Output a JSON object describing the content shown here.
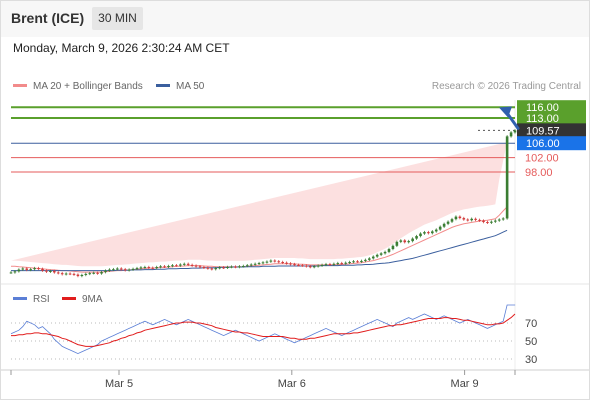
{
  "header": {
    "title": "Brent (ICE)",
    "timeframe": "30 MIN",
    "datetime": "Monday, March 9, 2026 2:30:24 AM CET"
  },
  "legend": {
    "ma20_label": "MA 20 + Bollinger Bands",
    "ma50_label": "MA 50",
    "ma20_color": "#f28b8b",
    "ma50_color": "#3b5f9e",
    "credit": "Research © 2026 Trading Central"
  },
  "rsi_legend": {
    "rsi_label": "RSI",
    "ma9_label": "9MA",
    "rsi_color": "#5b7fd6",
    "ma9_color": "#e11d1d"
  },
  "colors": {
    "resistance": "#5aa02c",
    "pivot": "#3b5f9e",
    "support": "#e55b5b",
    "candle_up": "#3a7d32",
    "candle_down": "#d23b3b",
    "price_badge": "#333333",
    "pivot_badge": "#1a73e8",
    "arrow": "#2f5fae"
  },
  "chart_data": [
    {
      "type": "candlestick",
      "title": "",
      "levels": [
        {
          "value": 116.0,
          "label": "116.00",
          "kind": "resistance"
        },
        {
          "value": 113.0,
          "label": "113.00",
          "kind": "resistance"
        },
        {
          "value": 109.57,
          "label": "109.57",
          "kind": "last_price"
        },
        {
          "value": 106.0,
          "label": "106.00",
          "kind": "pivot"
        },
        {
          "value": 102.0,
          "label": "102.00",
          "kind": "support"
        },
        {
          "value": 98.0,
          "label": "98.00",
          "kind": "support"
        }
      ],
      "ylim": [
        68,
        118
      ],
      "x_ticks": [
        {
          "label": "Mar 5",
          "x": 30
        },
        {
          "label": "Mar 6",
          "x": 78
        },
        {
          "label": "Mar 9",
          "x": 126
        }
      ],
      "xlim": [
        0,
        140
      ],
      "close": [
        70.1,
        70.4,
        70.9,
        71.2,
        70.8,
        71.0,
        71.3,
        71.1,
        70.6,
        70.3,
        70.5,
        70.1,
        69.9,
        69.6,
        69.8,
        69.7,
        69.5,
        69.1,
        69.4,
        69.7,
        69.9,
        70.0,
        69.8,
        70.2,
        70.6,
        70.9,
        71.0,
        71.2,
        71.0,
        70.7,
        70.9,
        71.1,
        71.3,
        71.5,
        71.6,
        71.4,
        71.3,
        71.6,
        71.8,
        71.7,
        71.9,
        72.1,
        72.0,
        72.3,
        72.5,
        72.2,
        72.0,
        71.8,
        71.6,
        71.4,
        71.2,
        71.0,
        71.3,
        71.5,
        71.4,
        71.6,
        71.7,
        71.6,
        71.8,
        71.9,
        72.1,
        72.3,
        72.5,
        72.7,
        72.9,
        73.1,
        73.4,
        73.2,
        73.0,
        72.8,
        72.6,
        72.4,
        72.2,
        72.1,
        72.0,
        71.8,
        71.6,
        71.8,
        72.0,
        72.2,
        72.4,
        72.3,
        72.5,
        72.7,
        72.6,
        72.8,
        73.0,
        73.2,
        73.1,
        73.3,
        73.6,
        74.0,
        74.5,
        75.0,
        75.4,
        75.8,
        76.6,
        77.5,
        78.6,
        79.0,
        78.5,
        78.8,
        79.5,
        80.2,
        80.9,
        81.3,
        81.0,
        81.5,
        82.0,
        82.8,
        83.6,
        84.2,
        84.9,
        85.6,
        85.2,
        84.8,
        84.6,
        85.0,
        84.7,
        84.5,
        84.1,
        83.9,
        84.2,
        84.5,
        84.8,
        85.1,
        107.9,
        109.0,
        109.57
      ],
      "ma20": [
        71.8,
        71.8,
        71.7,
        71.6,
        71.5,
        71.4,
        71.3,
        71.2,
        71.1,
        71.0,
        70.9,
        70.8,
        70.7,
        70.6,
        70.6,
        70.5,
        70.4,
        70.3,
        70.2,
        70.2,
        70.2,
        70.2,
        70.2,
        70.2,
        70.3,
        70.4,
        70.5,
        70.6,
        70.6,
        70.7,
        70.8,
        70.9,
        71.0,
        71.1,
        71.2,
        71.3,
        71.3,
        71.4,
        71.5,
        71.5,
        71.6,
        71.7,
        71.8,
        71.8,
        71.9,
        72.0,
        72.0,
        72.0,
        72.0,
        71.9,
        71.8,
        71.8,
        71.7,
        71.7,
        71.7,
        71.7,
        71.7,
        71.7,
        71.7,
        71.7,
        71.8,
        71.9,
        72.0,
        72.1,
        72.2,
        72.3,
        72.4,
        72.5,
        72.5,
        72.5,
        72.5,
        72.5,
        72.5,
        72.4,
        72.4,
        72.3,
        72.2,
        72.2,
        72.2,
        72.2,
        72.2,
        72.2,
        72.2,
        72.3,
        72.3,
        72.4,
        72.5,
        72.6,
        72.7,
        72.8,
        73.0,
        73.2,
        73.4,
        73.7,
        74.0,
        74.3,
        74.7,
        75.1,
        75.6,
        76.1,
        76.6,
        77.1,
        77.6,
        78.1,
        78.6,
        79.1,
        79.6,
        80.1,
        80.6,
        81.1,
        81.6,
        82.1,
        82.6,
        83.0,
        83.3,
        83.6,
        83.8,
        84.0,
        84.2,
        84.4,
        84.5,
        84.6,
        84.8,
        85.0,
        86.0,
        87.2,
        88.3
      ],
      "ma50": [
        70.6,
        70.6,
        70.6,
        70.6,
        70.6,
        70.6,
        70.6,
        70.6,
        70.6,
        70.6,
        70.6,
        70.6,
        70.6,
        70.6,
        70.6,
        70.6,
        70.6,
        70.6,
        70.6,
        70.6,
        70.6,
        70.6,
        70.6,
        70.6,
        70.6,
        70.6,
        70.6,
        70.7,
        70.7,
        70.7,
        70.7,
        70.8,
        70.8,
        70.8,
        70.9,
        70.9,
        70.9,
        71.0,
        71.0,
        71.0,
        71.1,
        71.1,
        71.1,
        71.2,
        71.2,
        71.2,
        71.3,
        71.3,
        71.3,
        71.4,
        71.4,
        71.4,
        71.4,
        71.5,
        71.5,
        71.5,
        71.6,
        71.6,
        71.6,
        71.6,
        71.7,
        71.7,
        71.7,
        71.7,
        71.8,
        71.8,
        71.8,
        71.8,
        71.9,
        71.9,
        71.9,
        71.9,
        71.9,
        71.9,
        71.9,
        71.9,
        71.9,
        71.9,
        71.9,
        72.0,
        72.0,
        72.0,
        72.0,
        72.0,
        72.1,
        72.1,
        72.1,
        72.1,
        72.2,
        72.2,
        72.3,
        72.3,
        72.4,
        72.5,
        72.6,
        72.7,
        72.8,
        73.0,
        73.2,
        73.4,
        73.6,
        73.8,
        74.0,
        74.3,
        74.6,
        74.9,
        75.2,
        75.5,
        75.8,
        76.1,
        76.4,
        76.7,
        77.0,
        77.3,
        77.6,
        77.9,
        78.2,
        78.5,
        78.8,
        79.1,
        79.4,
        79.7,
        80.0,
        80.3,
        80.8,
        81.3,
        81.8
      ],
      "bb_width": [
        1.6,
        1.6,
        1.6,
        1.6,
        1.6,
        1.6,
        1.6,
        1.6,
        1.6,
        1.6,
        1.6,
        1.6,
        1.6,
        1.6,
        1.6,
        1.6,
        1.6,
        1.6,
        1.6,
        1.6,
        1.6,
        1.6,
        1.6,
        1.6,
        1.6,
        1.6,
        1.6,
        1.6,
        1.6,
        1.6,
        1.6,
        1.6,
        1.6,
        1.6,
        1.6,
        1.6,
        1.6,
        1.6,
        1.6,
        1.6,
        1.6,
        1.6,
        1.6,
        1.6,
        1.6,
        1.6,
        1.6,
        1.6,
        1.6,
        1.6,
        1.6,
        1.6,
        1.6,
        1.6,
        1.6,
        1.6,
        1.6,
        1.6,
        1.6,
        1.6,
        1.6,
        1.6,
        1.6,
        1.6,
        1.6,
        1.6,
        1.6,
        1.6,
        1.6,
        1.6,
        1.6,
        1.6,
        1.6,
        1.6,
        1.6,
        1.6,
        1.6,
        1.6,
        1.6,
        1.6,
        1.6,
        1.6,
        1.6,
        1.6,
        1.6,
        1.6,
        1.6,
        1.6,
        1.6,
        1.6,
        1.6,
        1.7,
        1.8,
        2.0,
        2.2,
        2.4,
        2.6,
        2.9,
        3.2,
        3.5,
        3.7,
        3.9,
        4.0,
        4.1,
        4.2,
        4.3,
        4.2,
        4.1,
        4.0,
        4.0,
        4.0,
        4.0,
        4.0,
        4.0,
        4.0,
        4.0,
        4.0,
        4.0,
        4.0,
        4.0,
        4.0,
        4.0,
        4.0,
        4.0,
        10.0,
        14.0,
        18.0
      ]
    },
    {
      "type": "line",
      "title": "",
      "ylim": [
        20,
        90
      ],
      "y_ticks": [
        70,
        50,
        30
      ],
      "xlim": [
        0,
        140
      ],
      "series": [
        {
          "name": "RSI",
          "values": [
            58,
            60,
            62,
            66,
            72,
            70,
            68,
            64,
            66,
            62,
            58,
            52,
            48,
            44,
            42,
            40,
            38,
            36,
            38,
            40,
            42,
            44,
            46,
            50,
            52,
            54,
            56,
            58,
            60,
            62,
            64,
            66,
            68,
            70,
            72,
            70,
            68,
            70,
            72,
            74,
            72,
            70,
            68,
            70,
            72,
            74,
            72,
            70,
            68,
            66,
            64,
            62,
            60,
            58,
            56,
            58,
            60,
            62,
            60,
            58,
            56,
            54,
            52,
            50,
            52,
            54,
            56,
            58,
            56,
            54,
            52,
            50,
            48,
            50,
            52,
            54,
            56,
            58,
            60,
            62,
            64,
            62,
            60,
            58,
            56,
            58,
            60,
            62,
            64,
            66,
            68,
            70,
            72,
            74,
            72,
            70,
            68,
            66,
            70,
            72,
            74,
            76,
            74,
            76,
            78,
            80,
            78,
            76,
            74,
            76,
            78,
            76,
            74,
            72,
            70,
            72,
            74,
            72,
            70,
            68,
            66,
            64,
            66,
            68,
            70,
            72,
            90,
            90,
            90
          ]
        },
        {
          "name": "9MA",
          "values": [
            56,
            56,
            57,
            57,
            58,
            58,
            59,
            59,
            58,
            58,
            57,
            56,
            55,
            53,
            52,
            50,
            48,
            46,
            45,
            44,
            44,
            44,
            45,
            46,
            47,
            48,
            50,
            51,
            53,
            54,
            56,
            57,
            59,
            60,
            62,
            63,
            64,
            65,
            66,
            67,
            68,
            69,
            70,
            70,
            71,
            71,
            71,
            70,
            70,
            69,
            68,
            67,
            65,
            64,
            63,
            62,
            61,
            60,
            60,
            59,
            59,
            58,
            57,
            56,
            55,
            55,
            55,
            55,
            55,
            55,
            54,
            53,
            53,
            52,
            52,
            52,
            53,
            53,
            54,
            55,
            56,
            57,
            58,
            58,
            58,
            58,
            58,
            59,
            59,
            60,
            61,
            62,
            63,
            64,
            65,
            66,
            67,
            67,
            68,
            68,
            69,
            70,
            71,
            72,
            73,
            74,
            75,
            75,
            75,
            75,
            76,
            76,
            75,
            75,
            74,
            73,
            73,
            72,
            71,
            70,
            69,
            68,
            68,
            69,
            69,
            70,
            73,
            76,
            80
          ]
        }
      ]
    }
  ]
}
